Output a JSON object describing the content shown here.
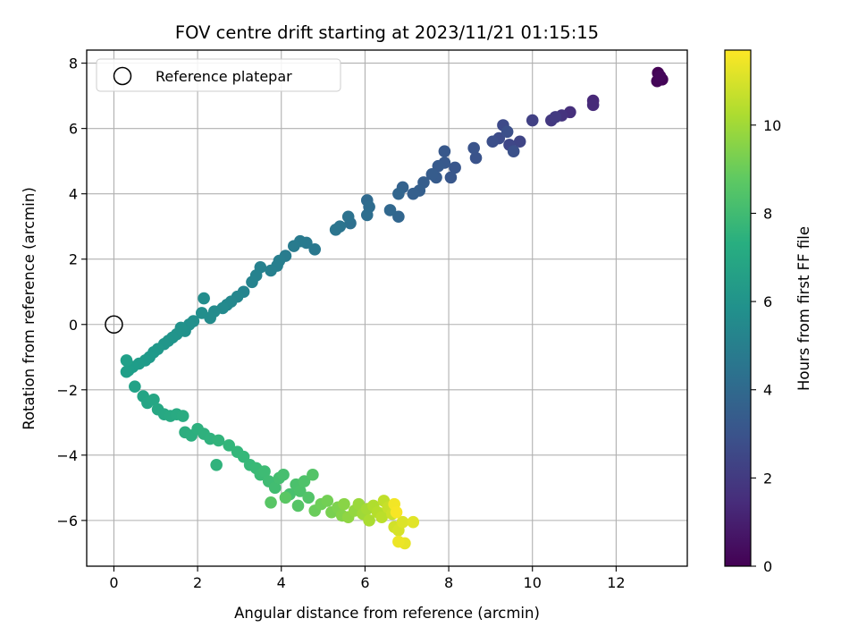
{
  "chart_data": {
    "type": "scatter",
    "title": "FOV centre drift starting at 2023/11/21 01:15:15",
    "xlabel": "Angular distance from reference (arcmin)",
    "ylabel": "Rotation from reference (arcmin)",
    "colorbar_label": "Hours from first FF file",
    "xlim": [
      -0.65,
      13.7
    ],
    "ylim": [
      -7.4,
      8.4
    ],
    "clim": [
      0,
      11.7
    ],
    "x_ticks": [
      0,
      2,
      4,
      6,
      8,
      10,
      12
    ],
    "y_ticks": [
      -6,
      -4,
      -2,
      0,
      2,
      4,
      6,
      8
    ],
    "colorbar_ticks": [
      0,
      2,
      4,
      6,
      8,
      10
    ],
    "grid": true,
    "colormap": "viridis",
    "legend": {
      "placement": "top-left",
      "entries": [
        "Reference platepar"
      ]
    },
    "reference_point": {
      "x": 0,
      "y": 0
    },
    "series": [
      {
        "points": [
          [
            13.0,
            7.7,
            0.05
          ],
          [
            13.1,
            7.5,
            0.1
          ],
          [
            12.98,
            7.45,
            0.15
          ],
          [
            13.05,
            7.6,
            0.2
          ],
          [
            11.45,
            6.85,
            1.3
          ],
          [
            11.45,
            6.72,
            1.4
          ],
          [
            10.9,
            6.5,
            1.6
          ],
          [
            10.7,
            6.4,
            1.75
          ],
          [
            10.45,
            6.25,
            1.9
          ],
          [
            10.55,
            6.35,
            2.0
          ],
          [
            10.0,
            6.25,
            2.2
          ],
          [
            9.7,
            5.6,
            2.4
          ],
          [
            9.45,
            5.5,
            2.5
          ],
          [
            9.3,
            6.1,
            2.6
          ],
          [
            9.2,
            5.7,
            2.7
          ],
          [
            9.05,
            5.6,
            2.8
          ],
          [
            9.4,
            5.9,
            2.85
          ],
          [
            9.55,
            5.3,
            2.9
          ],
          [
            8.65,
            5.1,
            3.0
          ],
          [
            8.6,
            5.4,
            3.05
          ],
          [
            8.15,
            4.8,
            3.1
          ],
          [
            8.05,
            4.5,
            3.15
          ],
          [
            7.9,
            5.3,
            3.2
          ],
          [
            7.9,
            4.95,
            3.25
          ],
          [
            7.75,
            4.85,
            3.3
          ],
          [
            7.7,
            4.5,
            3.35
          ],
          [
            7.6,
            4.6,
            3.4
          ],
          [
            7.4,
            4.35,
            3.45
          ],
          [
            7.3,
            4.1,
            3.5
          ],
          [
            7.15,
            4.0,
            3.55
          ],
          [
            6.9,
            4.2,
            3.65
          ],
          [
            6.8,
            4.0,
            3.75
          ],
          [
            6.8,
            3.3,
            3.8
          ],
          [
            6.6,
            3.5,
            3.9
          ],
          [
            6.05,
            3.8,
            4.0
          ],
          [
            6.1,
            3.6,
            4.1
          ],
          [
            6.05,
            3.35,
            4.2
          ],
          [
            5.65,
            3.1,
            4.3
          ],
          [
            5.6,
            3.3,
            4.4
          ],
          [
            5.4,
            3.0,
            4.5
          ],
          [
            5.3,
            2.9,
            4.55
          ],
          [
            4.8,
            2.3,
            4.7
          ],
          [
            4.6,
            2.5,
            4.75
          ],
          [
            4.45,
            2.55,
            4.8
          ],
          [
            4.3,
            2.4,
            4.85
          ],
          [
            4.1,
            2.1,
            4.9
          ],
          [
            3.95,
            1.95,
            5.0
          ],
          [
            3.9,
            1.8,
            5.05
          ],
          [
            3.75,
            1.65,
            5.1
          ],
          [
            3.5,
            1.75,
            5.15
          ],
          [
            3.4,
            1.5,
            5.2
          ],
          [
            3.3,
            1.3,
            5.25
          ],
          [
            3.1,
            1.0,
            5.3
          ],
          [
            2.95,
            0.85,
            5.4
          ],
          [
            2.8,
            0.7,
            5.45
          ],
          [
            2.7,
            0.6,
            5.5
          ],
          [
            2.6,
            0.5,
            5.55
          ],
          [
            2.4,
            0.4,
            5.6
          ],
          [
            2.3,
            0.2,
            5.65
          ],
          [
            2.15,
            0.8,
            5.7
          ],
          [
            2.1,
            0.35,
            5.75
          ],
          [
            1.9,
            0.1,
            5.8
          ],
          [
            1.8,
            0.0,
            5.85
          ],
          [
            1.7,
            -0.2,
            5.9
          ],
          [
            1.6,
            -0.1,
            5.95
          ],
          [
            1.5,
            -0.3,
            6.0
          ],
          [
            1.4,
            -0.4,
            6.05
          ],
          [
            1.3,
            -0.5,
            6.1
          ],
          [
            1.2,
            -0.6,
            6.15
          ],
          [
            1.05,
            -0.75,
            6.2
          ],
          [
            0.95,
            -0.85,
            6.25
          ],
          [
            0.85,
            -1.0,
            6.3
          ],
          [
            0.75,
            -1.1,
            6.35
          ],
          [
            0.6,
            -1.2,
            6.4
          ],
          [
            0.45,
            -1.3,
            6.45
          ],
          [
            0.35,
            -1.4,
            6.5
          ],
          [
            0.3,
            -1.45,
            6.55
          ],
          [
            0.3,
            -1.1,
            6.6
          ],
          [
            0.5,
            -1.9,
            6.7
          ],
          [
            0.7,
            -2.2,
            6.8
          ],
          [
            0.8,
            -2.4,
            6.85
          ],
          [
            0.95,
            -2.3,
            6.9
          ],
          [
            1.05,
            -2.6,
            6.95
          ],
          [
            1.2,
            -2.75,
            7.0
          ],
          [
            1.35,
            -2.8,
            7.05
          ],
          [
            1.5,
            -2.75,
            7.1
          ],
          [
            1.65,
            -2.8,
            7.15
          ],
          [
            1.7,
            -3.3,
            7.3
          ],
          [
            1.85,
            -3.4,
            7.35
          ],
          [
            2.0,
            -3.2,
            7.4
          ],
          [
            2.15,
            -3.35,
            7.45
          ],
          [
            2.3,
            -3.5,
            7.5
          ],
          [
            2.45,
            -4.3,
            7.55
          ],
          [
            2.5,
            -3.55,
            7.6
          ],
          [
            2.75,
            -3.7,
            7.7
          ],
          [
            2.95,
            -3.9,
            7.75
          ],
          [
            3.1,
            -4.05,
            7.8
          ],
          [
            3.25,
            -4.3,
            7.85
          ],
          [
            3.4,
            -4.4,
            7.9
          ],
          [
            3.5,
            -4.6,
            7.95
          ],
          [
            3.6,
            -4.5,
            8.0
          ],
          [
            3.7,
            -4.8,
            8.05
          ],
          [
            3.85,
            -5.0,
            8.1
          ],
          [
            3.95,
            -4.7,
            8.15
          ],
          [
            4.05,
            -4.6,
            8.2
          ],
          [
            4.2,
            -5.2,
            8.25
          ],
          [
            4.35,
            -4.9,
            8.3
          ],
          [
            4.45,
            -5.1,
            8.35
          ],
          [
            4.55,
            -4.8,
            8.4
          ],
          [
            4.65,
            -5.3,
            8.45
          ],
          [
            4.75,
            -4.6,
            8.5
          ],
          [
            4.4,
            -5.55,
            8.55
          ],
          [
            3.75,
            -5.45,
            8.6
          ],
          [
            4.1,
            -5.3,
            8.65
          ],
          [
            4.8,
            -5.7,
            9.0
          ],
          [
            4.95,
            -5.5,
            9.1
          ],
          [
            5.1,
            -5.4,
            9.2
          ],
          [
            5.2,
            -5.75,
            9.3
          ],
          [
            5.35,
            -5.6,
            9.4
          ],
          [
            5.45,
            -5.85,
            9.5
          ],
          [
            5.5,
            -5.5,
            9.6
          ],
          [
            5.6,
            -5.9,
            9.7
          ],
          [
            5.75,
            -5.7,
            9.8
          ],
          [
            5.85,
            -5.5,
            9.9
          ],
          [
            5.95,
            -5.8,
            10.0
          ],
          [
            6.05,
            -5.65,
            10.1
          ],
          [
            6.1,
            -6.0,
            10.2
          ],
          [
            6.2,
            -5.55,
            10.3
          ],
          [
            6.3,
            -5.75,
            10.4
          ],
          [
            6.4,
            -5.9,
            10.5
          ],
          [
            6.45,
            -5.4,
            10.6
          ],
          [
            6.55,
            -5.6,
            10.7
          ],
          [
            6.65,
            -5.8,
            10.8
          ],
          [
            6.7,
            -6.2,
            10.9
          ],
          [
            6.8,
            -6.3,
            11.0
          ],
          [
            6.9,
            -6.05,
            11.1
          ],
          [
            7.15,
            -6.05,
            11.2
          ],
          [
            6.95,
            -6.7,
            11.3
          ],
          [
            6.8,
            -6.65,
            11.4
          ],
          [
            6.7,
            -5.5,
            11.5
          ],
          [
            6.75,
            -5.75,
            11.6
          ]
        ]
      }
    ]
  }
}
